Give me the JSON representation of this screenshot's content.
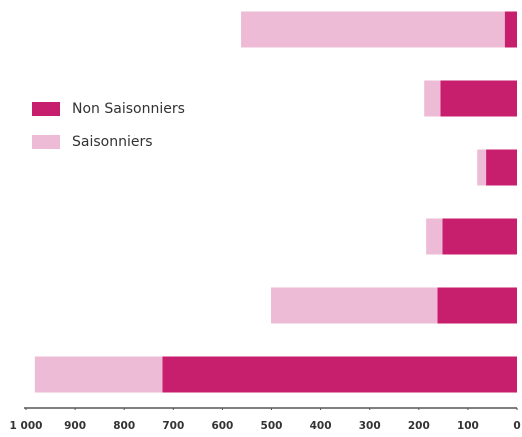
{
  "chart_data": {
    "type": "stacked-barh",
    "categories": [
      null,
      null,
      null,
      null,
      null,
      null
    ],
    "series": [
      {
        "name": "Non Saisonniers",
        "color": "#c81e6e",
        "values": [
          25,
          156,
          63,
          152,
          162,
          722
        ]
      },
      {
        "name": "Saisonniers",
        "color": "#eebbd6",
        "values": [
          537,
          33,
          18,
          33,
          339,
          260
        ]
      }
    ],
    "xlim": [
      1000,
      0
    ],
    "xticks": [
      {
        "value": 1000,
        "label": "1 000"
      },
      900,
      800,
      700,
      600,
      500,
      400,
      300,
      200,
      100,
      0
    ],
    "legend": "left"
  }
}
